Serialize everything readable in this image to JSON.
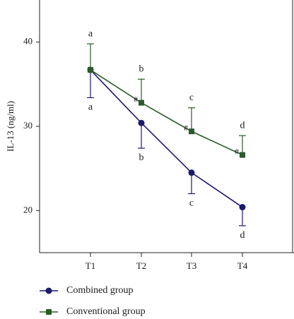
{
  "chart_data": {
    "type": "line",
    "title": "",
    "xlabel": "",
    "ylabel": "IL-13 (ng/ml)",
    "categories": [
      "T1",
      "T2",
      "T3",
      "T4"
    ],
    "ylim": [
      15,
      45
    ],
    "yticks": [
      20,
      30,
      40
    ],
    "legend_position": "bottom-left",
    "series": [
      {
        "name": "Combined group",
        "color": "#1c1a6e",
        "marker": "circle",
        "values": [
          36.7,
          30.4,
          24.5,
          20.4
        ],
        "error": [
          3.3,
          3.0,
          2.5,
          2.2
        ],
        "error_direction": "down",
        "labels": [
          "a",
          "b",
          "c",
          "d"
        ]
      },
      {
        "name": "Conventional group",
        "color": "#2c5a2c",
        "marker": "square",
        "values": [
          36.7,
          32.8,
          29.4,
          26.6
        ],
        "error": [
          3.1,
          2.8,
          2.8,
          2.3
        ],
        "error_direction": "up",
        "labels": [
          "a",
          "b",
          "c",
          "d"
        ],
        "hash_labels": [
          "",
          "#",
          "#",
          "#"
        ]
      }
    ]
  }
}
